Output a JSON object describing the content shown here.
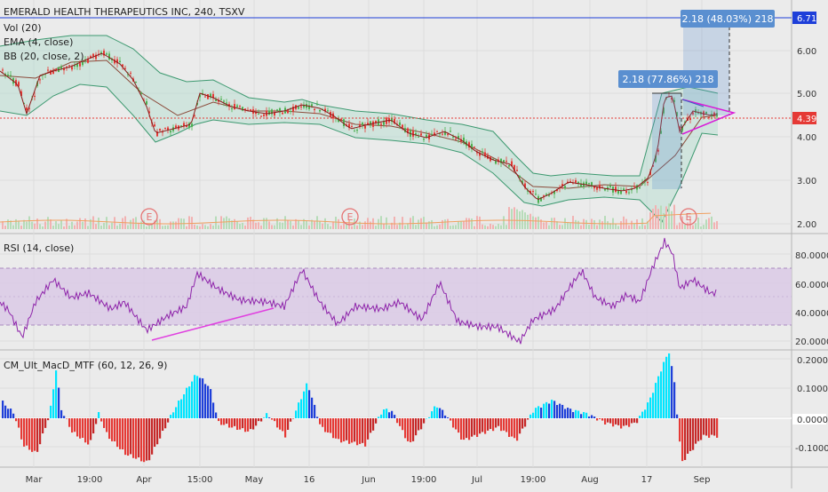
{
  "symbol": {
    "title": "EMERALD HEALTH THERAPEUTICS INC, 240, TSXV"
  },
  "indicators": {
    "vol": "Vol (20)",
    "ema": "EMA (4, close)",
    "bb": "BB (20, close, 2)",
    "rsi": "RSI (14, close)",
    "macd": "CM_Ult_MacD_MTF (60, 12, 26, 9)"
  },
  "price_axis": {
    "labels": [
      "6.00",
      "5.00",
      "4.00",
      "3.00",
      "2.00"
    ],
    "current_price": "4.39",
    "target_price": "6.71"
  },
  "rsi_axis": {
    "labels": [
      "80.0000",
      "60.0000",
      "40.0000",
      "20.0000"
    ]
  },
  "macd_axis": {
    "labels": [
      "0.2000",
      "0.1000",
      "0.0000",
      "-0.1000"
    ]
  },
  "time_axis": {
    "labels": [
      "Mar",
      "19:00",
      "Apr",
      "15:00",
      "May",
      "16",
      "Jun",
      "19:00",
      "Jul",
      "19:00",
      "Aug",
      "17",
      "Sep"
    ]
  },
  "annotations": {
    "measure_1": "2.18 (77.86%) 218",
    "measure_2": "2.18 (48.03%) 218",
    "earnings": "E"
  },
  "colors": {
    "background": "#ebebeb",
    "bb_line": "#3d9970",
    "bb_fill": "#b9dfd2",
    "ema": "#8b1a1a",
    "candle_up": "#4caf50",
    "candle_down": "#e53935",
    "rsi_line": "#8e24aa",
    "rsi_band": "#d9c8e6",
    "macd_up_strong": "#00e5ff",
    "macd_up_weak": "#1e3fd9",
    "macd_down": "#e53935",
    "price_tag": "#e53935",
    "target_tag": "#1e3fd9",
    "measure_box": "#5a8fd0",
    "pattern": "#d81bd8"
  }
}
